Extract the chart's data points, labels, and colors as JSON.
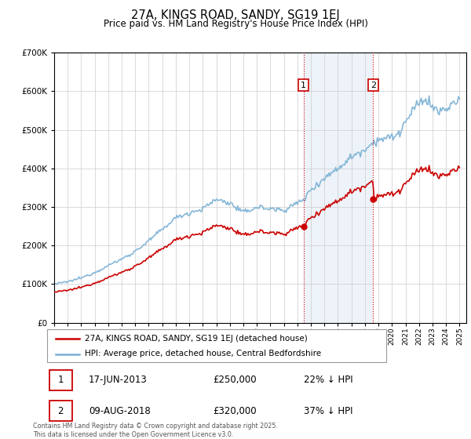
{
  "title1": "27A, KINGS ROAD, SANDY, SG19 1EJ",
  "title2": "Price paid vs. HM Land Registry's House Price Index (HPI)",
  "background_color": "#ffffff",
  "grid_color": "#cccccc",
  "hpi_color": "#7ab0d4",
  "price_color": "#cc0000",
  "shade_color": "#ccddf0",
  "annotation1_date": "17-JUN-2013",
  "annotation1_price": "£250,000",
  "annotation1_hpi": "22% ↓ HPI",
  "annotation1_year": 2013.46,
  "annotation2_date": "09-AUG-2018",
  "annotation2_price": "£320,000",
  "annotation2_hpi": "37% ↓ HPI",
  "annotation2_year": 2018.61,
  "legend_label1": "27A, KINGS ROAD, SANDY, SG19 1EJ (detached house)",
  "legend_label2": "HPI: Average price, detached house, Central Bedfordshire",
  "footnote": "Contains HM Land Registry data © Crown copyright and database right 2025.\nThis data is licensed under the Open Government Licence v3.0.",
  "ylim_min": 0,
  "ylim_max": 700000,
  "xmin": 1995,
  "xmax": 2025.5
}
